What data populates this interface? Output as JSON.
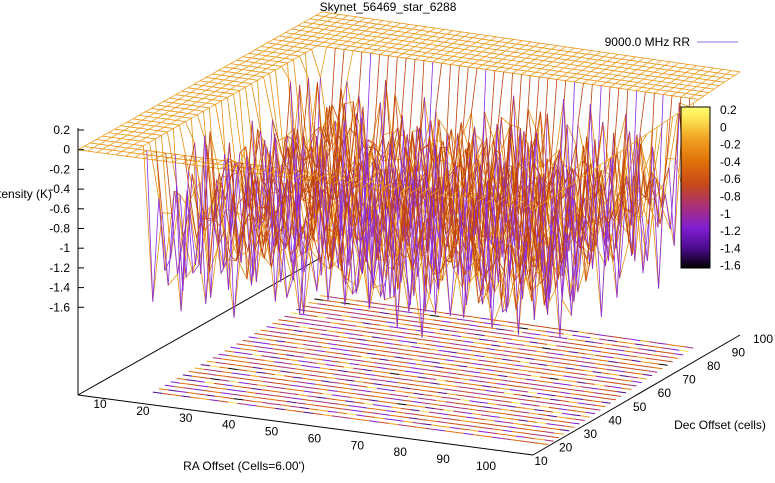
{
  "chart_data": {
    "type": "surface3d",
    "title": "Skynet_56469_star_6288",
    "xlabel": "RA Offset (Cells=6.00')",
    "ylabel": "Dec Offset (cells)",
    "zlabel": "Intensity (K)",
    "xlim": [
      0,
      100
    ],
    "ylim": [
      10,
      100
    ],
    "zlim": [
      -1.6,
      0.2
    ],
    "x_ticks": [
      "10",
      "20",
      "30",
      "40",
      "50",
      "60",
      "70",
      "80",
      "90",
      "100"
    ],
    "y_ticks": [
      "10",
      "20",
      "30",
      "40",
      "50",
      "60",
      "70",
      "80",
      "90",
      "100"
    ],
    "z_ticks": [
      "0.2",
      "0",
      "-0.2",
      "-0.4",
      "-0.6",
      "-0.8",
      "-1",
      "-1.2",
      "-1.4",
      "-1.6"
    ],
    "colorbar": {
      "ticks": [
        "0.2",
        "0",
        "-0.2",
        "-0.4",
        "-0.6",
        "-0.8",
        "-1",
        "-1.2",
        "-1.4",
        "-1.6"
      ],
      "range": [
        -1.6,
        0.2
      ],
      "palette": [
        "#000000",
        "#4b0a8c",
        "#7f1fd1",
        "#a8307a",
        "#c84a18",
        "#e0700a",
        "#f0a020",
        "#fce050",
        "#ffff70"
      ]
    },
    "series": [
      {
        "name": "9000.0 MHz RR",
        "color": "#9370db"
      }
    ],
    "surface_color": "#f0a020",
    "contour_projection": true
  }
}
